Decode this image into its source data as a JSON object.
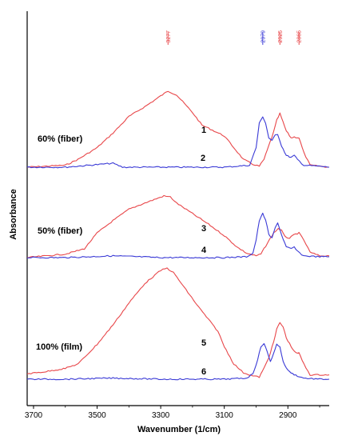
{
  "chart_data": {
    "type": "line",
    "title": "",
    "xlabel": "Wavenumber (1/cm)",
    "ylabel": "Absorbance",
    "x_reversed": true,
    "xlim": [
      3720,
      2770
    ],
    "xticks": [
      3700,
      3500,
      3300,
      3100,
      2900
    ],
    "grid": false,
    "peak_markers": [
      {
        "label": "3277",
        "x": 3277,
        "color": "#e8474a"
      },
      {
        "label": "2979",
        "x": 2979,
        "color": "#3a3ad6"
      },
      {
        "label": "2925",
        "x": 2925,
        "color": "#e8474a"
      },
      {
        "label": "2865",
        "x": 2865,
        "color": "#e8474a"
      }
    ],
    "panels": [
      {
        "label": "60% (fiber)",
        "series": [
          {
            "name": "1",
            "color": "#e8474a",
            "x": [
              3720,
              3660,
              3600,
              3560,
              3500,
              3450,
              3400,
              3350,
              3300,
              3277,
              3250,
              3200,
              3170,
              3150,
              3100,
              3070,
              3040,
              3010,
              2990,
              2975,
              2960,
              2945,
              2935,
              2925,
              2915,
              2905,
              2890,
              2880,
              2865,
              2850,
              2830,
              2800,
              2770
            ],
            "y": [
              0.0,
              0.01,
              0.02,
              0.08,
              0.2,
              0.35,
              0.52,
              0.62,
              0.73,
              0.78,
              0.74,
              0.56,
              0.43,
              0.4,
              0.32,
              0.2,
              0.08,
              0.03,
              0.01,
              0.08,
              0.22,
              0.36,
              0.48,
              0.55,
              0.46,
              0.37,
              0.3,
              0.31,
              0.3,
              0.15,
              0.02,
              0.01,
              0.0
            ]
          },
          {
            "name": "2",
            "color": "#3a3ad6",
            "x": [
              3720,
              3600,
              3450,
              3420,
              3300,
              3100,
              3020,
              3000,
              2990,
              2979,
              2970,
              2960,
              2950,
              2940,
              2932,
              2920,
              2905,
              2890,
              2880,
              2870,
              2850,
              2800,
              2770
            ],
            "y": [
              0.0,
              0.0,
              0.04,
              0.0,
              0.0,
              0.0,
              0.02,
              0.2,
              0.45,
              0.52,
              0.45,
              0.3,
              0.27,
              0.33,
              0.34,
              0.22,
              0.12,
              0.1,
              0.12,
              0.08,
              0.02,
              0.01,
              0.0
            ]
          }
        ]
      },
      {
        "label": "50% (fiber)",
        "series": [
          {
            "name": "3",
            "color": "#e8474a",
            "x": [
              3720,
              3660,
              3600,
              3540,
              3500,
              3450,
              3400,
              3350,
              3290,
              3270,
              3250,
              3200,
              3150,
              3100,
              3060,
              3030,
              3000,
              2985,
              2975,
              2960,
              2945,
              2930,
              2920,
              2910,
              2895,
              2880,
              2865,
              2850,
              2830,
              2800,
              2770
            ],
            "y": [
              0.0,
              0.02,
              0.04,
              0.1,
              0.28,
              0.42,
              0.55,
              0.62,
              0.7,
              0.69,
              0.62,
              0.5,
              0.38,
              0.25,
              0.12,
              0.05,
              0.02,
              0.04,
              0.1,
              0.19,
              0.28,
              0.33,
              0.31,
              0.24,
              0.22,
              0.26,
              0.28,
              0.2,
              0.06,
              0.02,
              0.02
            ]
          },
          {
            "name": "4",
            "color": "#3a3ad6",
            "x": [
              3720,
              3600,
              3450,
              3300,
              3100,
              3030,
              3010,
              3000,
              2990,
              2979,
              2970,
              2960,
              2950,
              2940,
              2932,
              2920,
              2905,
              2890,
              2880,
              2870,
              2850,
              2800,
              2770
            ],
            "y": [
              0.0,
              0.0,
              0.02,
              0.0,
              0.0,
              0.01,
              0.05,
              0.2,
              0.42,
              0.5,
              0.43,
              0.26,
              0.22,
              0.34,
              0.4,
              0.26,
              0.12,
              0.1,
              0.12,
              0.07,
              0.02,
              0.01,
              0.01
            ]
          }
        ]
      },
      {
        "label": "100% (film)",
        "series": [
          {
            "name": "5",
            "color": "#e8474a",
            "x": [
              3720,
              3660,
              3600,
              3560,
              3500,
              3450,
              3400,
              3350,
              3300,
              3280,
              3260,
              3220,
              3180,
              3150,
              3120,
              3100,
              3070,
              3040,
              3010,
              2990,
              2975,
              2960,
              2945,
              2935,
              2925,
              2915,
              2905,
              2890,
              2875,
              2865,
              2850,
              2830,
              2800,
              2770
            ],
            "y": [
              0.05,
              0.07,
              0.1,
              0.14,
              0.32,
              0.5,
              0.7,
              0.88,
              1.0,
              1.02,
              0.98,
              0.82,
              0.66,
              0.55,
              0.44,
              0.3,
              0.14,
              0.06,
              0.03,
              0.02,
              0.1,
              0.2,
              0.34,
              0.46,
              0.52,
              0.48,
              0.38,
              0.3,
              0.24,
              0.24,
              0.14,
              0.04,
              0.04,
              0.04
            ]
          },
          {
            "name": "6",
            "color": "#3a3ad6",
            "x": [
              3720,
              3600,
              3450,
              3300,
              3100,
              3030,
              3010,
              2995,
              2985,
              2975,
              2965,
              2955,
              2945,
              2935,
              2925,
              2915,
              2900,
              2885,
              2870,
              2850,
              2800,
              2770
            ],
            "y": [
              0.0,
              0.0,
              0.01,
              0.0,
              0.0,
              0.01,
              0.05,
              0.18,
              0.3,
              0.33,
              0.25,
              0.16,
              0.24,
              0.32,
              0.3,
              0.16,
              0.08,
              0.05,
              0.03,
              0.01,
              0.0,
              0.0
            ]
          }
        ]
      }
    ]
  }
}
